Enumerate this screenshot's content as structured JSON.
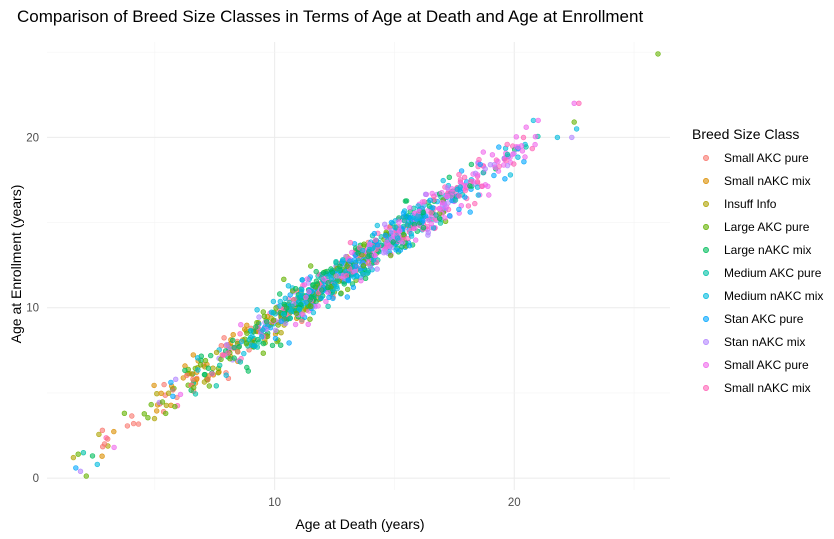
{
  "chart_data": {
    "type": "scatter",
    "title": "Comparison of Breed Size Classes in Terms of Age at Death and Age at Enrollment",
    "xlabel": "Age at Death (years)",
    "ylabel": "Age at Enrollment (years)",
    "xlim": [
      0.5,
      26.5
    ],
    "ylim": [
      -0.7,
      25.6
    ],
    "x_ticks": [
      10,
      20
    ],
    "y_ticks": [
      0,
      10,
      20
    ],
    "grid": true,
    "legend_position": "right",
    "legend_title": "Breed Size Class",
    "series": [
      {
        "name": "Small AKC pure",
        "color": "#F8766D",
        "center": [
          9.0,
          8.3
        ],
        "spread": 3.0,
        "n": 55
      },
      {
        "name": "Small nAKC mix",
        "color": "#DB8E00",
        "center": [
          8.5,
          7.8
        ],
        "spread": 3.0,
        "n": 55
      },
      {
        "name": "Insuff Info",
        "color": "#AEA200",
        "center": [
          10.0,
          9.3
        ],
        "spread": 3.2,
        "n": 50
      },
      {
        "name": "Large AKC pure",
        "color": "#64B200",
        "center": [
          11.0,
          10.3
        ],
        "spread": 3.0,
        "n": 120
      },
      {
        "name": "Large nAKC mix",
        "color": "#00BD5C",
        "center": [
          12.0,
          11.3
        ],
        "spread": 3.0,
        "n": 140
      },
      {
        "name": "Medium AKC pure",
        "color": "#00C1A7",
        "center": [
          13.0,
          12.2
        ],
        "spread": 3.0,
        "n": 110
      },
      {
        "name": "Medium nAKC mix",
        "color": "#00BADE",
        "center": [
          13.5,
          12.7
        ],
        "spread": 3.2,
        "n": 140
      },
      {
        "name": "Stan AKC pure",
        "color": "#00A6FF",
        "center": [
          14.0,
          13.0
        ],
        "spread": 3.0,
        "n": 130
      },
      {
        "name": "Stan nAKC mix",
        "color": "#B385FF",
        "center": [
          13.5,
          12.5
        ],
        "spread": 3.4,
        "n": 110
      },
      {
        "name": "Small AKC pure",
        "color": "#EF67EB",
        "center": [
          15.5,
          14.0
        ],
        "spread": 3.0,
        "n": 150
      },
      {
        "name": "Small nAKC mix",
        "color": "#FF63B6",
        "center": [
          15.0,
          13.8
        ],
        "spread": 3.2,
        "n": 120
      }
    ],
    "extra_points": [
      {
        "series": 3,
        "x": 26.0,
        "y": 24.9
      },
      {
        "series": 9,
        "x": 22.5,
        "y": 22.0
      },
      {
        "series": 10,
        "x": 22.7,
        "y": 22.0
      },
      {
        "series": 3,
        "x": 22.5,
        "y": 20.9
      },
      {
        "series": 6,
        "x": 20.8,
        "y": 21.0
      },
      {
        "series": 9,
        "x": 21.0,
        "y": 21.0
      },
      {
        "series": 6,
        "x": 22.6,
        "y": 20.5
      },
      {
        "series": 8,
        "x": 22.4,
        "y": 20.0
      },
      {
        "series": 6,
        "x": 21.8,
        "y": 20.0
      },
      {
        "series": 9,
        "x": 20.5,
        "y": 20.6
      },
      {
        "series": 3,
        "x": 1.8,
        "y": 1.4
      },
      {
        "series": 2,
        "x": 1.6,
        "y": 1.2
      },
      {
        "series": 7,
        "x": 1.7,
        "y": 0.6
      },
      {
        "series": 8,
        "x": 1.9,
        "y": 0.4
      },
      {
        "series": 4,
        "x": 2.4,
        "y": 1.3
      },
      {
        "series": 6,
        "x": 2.6,
        "y": 0.8
      },
      {
        "series": 0,
        "x": 2.9,
        "y": 2.0
      },
      {
        "series": 9,
        "x": 3.3,
        "y": 1.8
      }
    ]
  }
}
